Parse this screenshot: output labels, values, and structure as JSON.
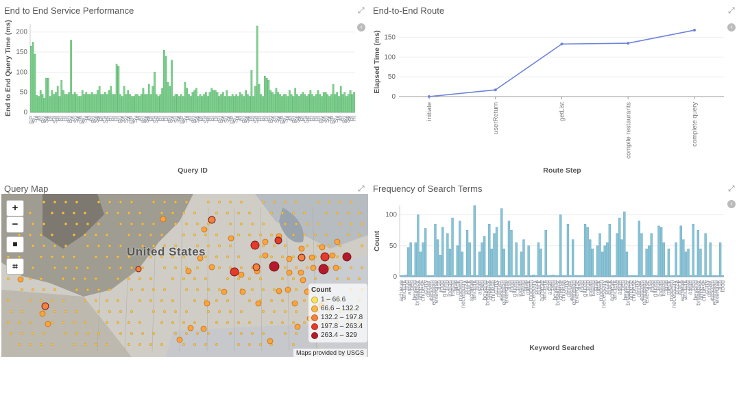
{
  "panels": {
    "p1": {
      "title": "End to End Service Performance"
    },
    "p2": {
      "title": "End-to-End Route"
    },
    "p3": {
      "title": "Query Map"
    },
    "p4": {
      "title": "Frequency of Search Terms"
    }
  },
  "map": {
    "country_label": "United States",
    "attribution": "Maps provided by USGS",
    "legend_title": "Count",
    "legend": [
      {
        "label": "1 – 66.6",
        "color": "#fde25a"
      },
      {
        "label": "66.6 – 132.2",
        "color": "#fdb844"
      },
      {
        "label": "132.2 – 197.8",
        "color": "#f5823c"
      },
      {
        "label": "197.8 – 263.4",
        "color": "#e63a2a"
      },
      {
        "label": "263.4 – 329",
        "color": "#b61a2a"
      }
    ],
    "controls": {
      "zoom_in": "+",
      "zoom_out": "−",
      "draw": "■",
      "crop": "⌗"
    }
  },
  "chart_data": [
    {
      "type": "bar",
      "title": "End to End Service Performance",
      "xlabel": "Query ID",
      "ylabel": "End to End Query Time (ms)",
      "ylim": [
        0,
        220
      ],
      "yticks": [
        0,
        50,
        100,
        150,
        200
      ],
      "color": "#7fcf8f",
      "values": [
        165,
        175,
        145,
        42,
        40,
        55,
        45,
        35,
        85,
        85,
        40,
        55,
        45,
        50,
        65,
        40,
        80,
        55,
        45,
        45,
        50,
        180,
        45,
        50,
        45,
        40,
        40,
        55,
        45,
        50,
        45,
        45,
        50,
        45,
        45,
        55,
        65,
        45,
        45,
        50,
        45,
        55,
        65,
        45,
        45,
        120,
        115,
        45,
        40,
        65,
        45,
        55,
        45,
        40,
        40,
        45,
        45,
        40,
        45,
        60,
        45,
        45,
        70,
        45,
        65,
        100,
        45,
        40,
        45,
        60,
        155,
        140,
        75,
        65,
        130,
        40,
        45,
        45,
        40,
        45,
        40,
        75,
        60,
        45,
        40,
        50,
        55,
        60,
        40,
        45,
        40,
        45,
        50,
        40,
        50,
        60,
        55,
        55,
        50,
        40,
        45,
        50,
        40,
        55,
        40,
        40,
        45,
        40,
        45,
        40,
        50,
        45,
        40,
        55,
        45,
        40,
        105,
        40,
        65,
        215,
        70,
        45,
        40,
        90,
        85,
        80,
        55,
        50,
        45,
        60,
        50,
        45,
        40,
        45,
        45,
        40,
        55,
        45,
        40,
        60,
        45,
        40,
        45,
        50,
        45,
        40,
        45,
        55,
        45,
        40,
        45,
        55,
        45,
        40,
        50,
        50,
        45,
        40,
        45,
        70,
        45,
        50,
        40,
        65,
        45,
        50,
        40,
        45,
        55,
        45,
        50
      ],
      "xtick_samples": [
        "BP",
        "Sy",
        "H",
        "Hi",
        "By",
        "Sy",
        "Bl",
        "Hi",
        "Se",
        "Hi",
        "Bi",
        "Hi",
        "Hi",
        "By",
        "Hi",
        "Sy",
        "Hi"
      ]
    },
    {
      "type": "line",
      "title": "End-to-End Route",
      "xlabel": "Route Step",
      "ylabel": "Elapsed Time (ms)",
      "ylim": [
        0,
        175
      ],
      "yticks": [
        0,
        50,
        100,
        150
      ],
      "color": "#6e84d9",
      "categories": [
        "initiate",
        "userReturn",
        "getList",
        "compile restaurants",
        "complete query"
      ],
      "values": [
        0,
        17,
        133,
        135,
        168
      ]
    },
    {
      "type": "bar",
      "title": "Frequency of Search Terms",
      "xlabel": "Keyword Searched",
      "ylabel": "Count",
      "ylim": [
        0,
        115
      ],
      "yticks": [
        0,
        50,
        100
      ],
      "color": "#88c3d6",
      "values": [
        2,
        2,
        3,
        47,
        55,
        2,
        55,
        100,
        40,
        55,
        78,
        2,
        2,
        2,
        85,
        60,
        35,
        80,
        2,
        70,
        45,
        95,
        2,
        50,
        90,
        40,
        2,
        75,
        55,
        2,
        115,
        2,
        40,
        55,
        65,
        2,
        85,
        45,
        70,
        80,
        2,
        110,
        45,
        2,
        90,
        75,
        2,
        55,
        2,
        40,
        60,
        2,
        50,
        2,
        3,
        2,
        55,
        45,
        2,
        75,
        2,
        2,
        3,
        2,
        2,
        100,
        2,
        2,
        85,
        2,
        60,
        2,
        2,
        2,
        2,
        85,
        80,
        60,
        45,
        2,
        50,
        70,
        40,
        50,
        55,
        85,
        2,
        2,
        70,
        95,
        60,
        105,
        40,
        2,
        2,
        2,
        2,
        90,
        70,
        2,
        45,
        50,
        70,
        2,
        2,
        82,
        80,
        55,
        2,
        45,
        2,
        2,
        55,
        2,
        82,
        60,
        40,
        45,
        2,
        85,
        2,
        75,
        45,
        2,
        70,
        2,
        55,
        2,
        2,
        2,
        55,
        2
      ],
      "xtick_samples": [
        "achieve",
        "ancient",
        "and",
        "asian",
        "ben",
        "beyond",
        "breakfast",
        "cheese",
        "chinese",
        "curry",
        "dinner",
        "eastern",
        "ethiopian",
        "exercise",
        "fish",
        "food",
        "gluten",
        "hub",
        "indian",
        "island",
        "latin",
        "medit",
        "modern",
        "necessary",
        "pizza",
        "quick"
      ]
    }
  ]
}
